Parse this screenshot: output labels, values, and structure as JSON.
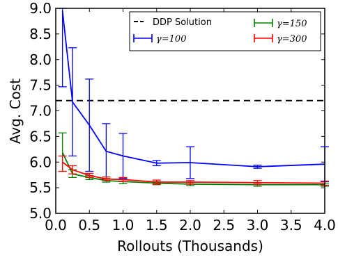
{
  "chart_data": {
    "type": "line",
    "title": "",
    "xlabel": "Rollouts (Thousands)",
    "ylabel": "Avg. Cost",
    "xlim": [
      0.0,
      4.0
    ],
    "ylim": [
      5.0,
      9.0
    ],
    "xticks": [
      "0.0",
      "0.5",
      "1.0",
      "1.5",
      "2.0",
      "2.5",
      "3.0",
      "3.5",
      "4.0"
    ],
    "yticks": [
      "5.0",
      "5.5",
      "6.0",
      "6.5",
      "7.0",
      "7.5",
      "8.0",
      "8.5",
      "9.0"
    ],
    "grid": false,
    "legend_position": "top-right",
    "reference_line": {
      "name": "DDP Solution",
      "y": 7.2,
      "color": "#000000",
      "style": "dashed"
    },
    "series": [
      {
        "name": "γ=100",
        "color": "#0000ff",
        "x": [
          0.1,
          0.25,
          0.5,
          0.75,
          1.0,
          1.5,
          2.0,
          3.0,
          4.0
        ],
        "y": [
          8.95,
          7.17,
          6.72,
          6.21,
          6.12,
          5.98,
          5.99,
          5.91,
          5.96
        ],
        "err_low": [
          7.47,
          6.12,
          5.82,
          5.67,
          5.68,
          5.93,
          5.68,
          5.88,
          5.62
        ],
        "err_high": [
          9.0,
          8.23,
          7.62,
          6.75,
          6.56,
          6.03,
          6.3,
          5.94,
          6.3
        ]
      },
      {
        "name": "γ=150",
        "color": "#008000",
        "x": [
          0.1,
          0.25,
          0.5,
          0.75,
          1.0,
          1.5,
          2.0,
          3.0,
          4.0
        ],
        "y": [
          6.19,
          5.77,
          5.7,
          5.64,
          5.62,
          5.59,
          5.57,
          5.56,
          5.56
        ],
        "err_low": [
          5.82,
          5.7,
          5.66,
          5.61,
          5.58,
          5.56,
          5.54,
          5.53,
          5.53
        ],
        "err_high": [
          6.57,
          5.85,
          5.74,
          5.68,
          5.66,
          5.62,
          5.6,
          5.59,
          5.59
        ]
      },
      {
        "name": "γ=300",
        "color": "#ff0000",
        "x": [
          0.1,
          0.25,
          0.5,
          0.75,
          1.0,
          1.5,
          2.0,
          3.0,
          4.0
        ],
        "y": [
          6.0,
          5.85,
          5.74,
          5.67,
          5.66,
          5.61,
          5.61,
          5.6,
          5.59
        ],
        "err_low": [
          5.82,
          5.77,
          5.7,
          5.64,
          5.62,
          5.57,
          5.57,
          5.56,
          5.55
        ],
        "err_high": [
          6.12,
          5.93,
          5.78,
          5.71,
          5.7,
          5.65,
          5.64,
          5.64,
          5.63
        ]
      }
    ]
  }
}
